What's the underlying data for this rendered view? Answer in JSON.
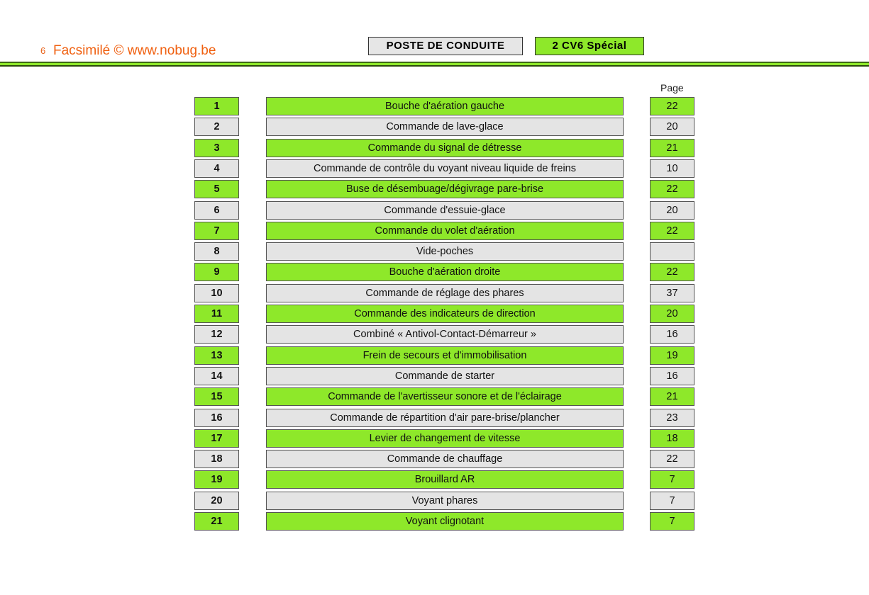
{
  "header": {
    "page_number": "6",
    "watermark": "Facsimilé © www.nobug.be",
    "section_title": "POSTE DE CONDUITE",
    "model": "2 CV6 Spécial"
  },
  "column_header": "Page",
  "colors": {
    "green": "#8ee82a",
    "grey": "#e4e4e4",
    "watermark": "#f06010"
  },
  "items": [
    {
      "num": "1",
      "label": "Bouche d'aération gauche",
      "page": "22"
    },
    {
      "num": "2",
      "label": "Commande de lave-glace",
      "page": "20"
    },
    {
      "num": "3",
      "label": "Commande du signal de détresse",
      "page": "21"
    },
    {
      "num": "4",
      "label": "Commande de contrôle du voyant niveau liquide de freins",
      "page": "10"
    },
    {
      "num": "5",
      "label": "Buse de désembuage/dégivrage pare-brise",
      "page": "22"
    },
    {
      "num": "6",
      "label": "Commande d'essuie-glace",
      "page": "20"
    },
    {
      "num": "7",
      "label": "Commande du volet d'aération",
      "page": "22"
    },
    {
      "num": "8",
      "label": "Vide-poches",
      "page": ""
    },
    {
      "num": "9",
      "label": "Bouche d'aération droite",
      "page": "22"
    },
    {
      "num": "10",
      "label": "Commande de réglage des phares",
      "page": "37"
    },
    {
      "num": "11",
      "label": "Commande des indicateurs de direction",
      "page": "20"
    },
    {
      "num": "12",
      "label": "Combiné « Antivol-Contact-Démarreur »",
      "page": "16"
    },
    {
      "num": "13",
      "label": "Frein de secours et d'immobilisation",
      "page": "19"
    },
    {
      "num": "14",
      "label": "Commande de starter",
      "page": "16"
    },
    {
      "num": "15",
      "label": "Commande de l'avertisseur sonore et de l'éclairage",
      "page": "21"
    },
    {
      "num": "16",
      "label": "Commande de répartition d'air pare-brise/plancher",
      "page": "23"
    },
    {
      "num": "17",
      "label": "Levier de changement de vitesse",
      "page": "18"
    },
    {
      "num": "18",
      "label": "Commande de chauffage",
      "page": "22"
    },
    {
      "num": "19",
      "label": "Brouillard AR",
      "page": "7"
    },
    {
      "num": "20",
      "label": "Voyant phares",
      "page": "7"
    },
    {
      "num": "21",
      "label": "Voyant clignotant",
      "page": "7"
    }
  ]
}
